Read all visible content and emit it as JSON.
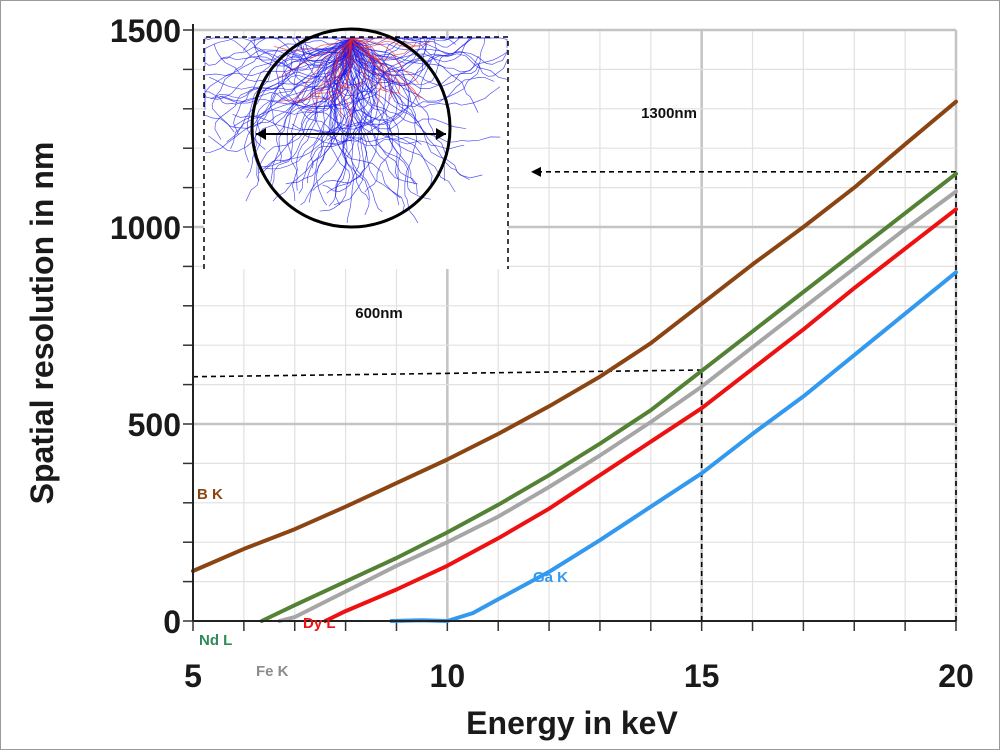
{
  "chart_data": {
    "type": "line",
    "title": "",
    "xlabel": "Energy in keV",
    "ylabel": "Spatial resolution in nm",
    "xlim": [
      5,
      20
    ],
    "ylim": [
      0,
      1500
    ],
    "xticks": [
      "5",
      "10",
      "15",
      "20"
    ],
    "yticks": [
      "0",
      "500",
      "1000",
      "1500"
    ],
    "grid": true,
    "series": [
      {
        "name": "B K",
        "color": "#8B4513",
        "points": [
          [
            5,
            127
          ],
          [
            6,
            183
          ],
          [
            7,
            233
          ],
          [
            8,
            290
          ],
          [
            9,
            350
          ],
          [
            10,
            410
          ],
          [
            11,
            475
          ],
          [
            12,
            545
          ],
          [
            13,
            620
          ],
          [
            14,
            705
          ],
          [
            15,
            805
          ],
          [
            16,
            905
          ],
          [
            17,
            1000
          ],
          [
            18,
            1100
          ],
          [
            19,
            1210
          ],
          [
            20,
            1318
          ]
        ]
      },
      {
        "name": "Nd L",
        "color": "#548235",
        "points": [
          [
            6.35,
            0
          ],
          [
            7,
            40
          ],
          [
            8,
            100
          ],
          [
            9,
            160
          ],
          [
            10,
            225
          ],
          [
            11,
            295
          ],
          [
            12,
            370
          ],
          [
            13,
            450
          ],
          [
            14,
            535
          ],
          [
            15,
            635
          ],
          [
            16,
            735
          ],
          [
            17,
            835
          ],
          [
            18,
            935
          ],
          [
            19,
            1035
          ],
          [
            20,
            1135
          ]
        ]
      },
      {
        "name": "Fe K",
        "color": "#A6A6A6",
        "points": [
          [
            6.7,
            0
          ],
          [
            7,
            10
          ],
          [
            8,
            75
          ],
          [
            9,
            140
          ],
          [
            10,
            200
          ],
          [
            11,
            265
          ],
          [
            12,
            340
          ],
          [
            13,
            420
          ],
          [
            14,
            505
          ],
          [
            15,
            595
          ],
          [
            16,
            695
          ],
          [
            17,
            795
          ],
          [
            18,
            895
          ],
          [
            19,
            995
          ],
          [
            20,
            1090
          ]
        ]
      },
      {
        "name": "Dy L",
        "color": "#EE1111",
        "points": [
          [
            7.6,
            0
          ],
          [
            8,
            25
          ],
          [
            9,
            80
          ],
          [
            10,
            140
          ],
          [
            11,
            210
          ],
          [
            12,
            285
          ],
          [
            13,
            370
          ],
          [
            14,
            455
          ],
          [
            15,
            540
          ],
          [
            16,
            640
          ],
          [
            17,
            740
          ],
          [
            18,
            845
          ],
          [
            19,
            945
          ],
          [
            20,
            1045
          ]
        ]
      },
      {
        "name": "Ga K",
        "color": "#3399EE",
        "points": [
          [
            8.9,
            0
          ],
          [
            9.5,
            2
          ],
          [
            10,
            0
          ],
          [
            10.5,
            20
          ],
          [
            11,
            55
          ],
          [
            12,
            125
          ],
          [
            13,
            205
          ],
          [
            14,
            290
          ],
          [
            15,
            375
          ],
          [
            16,
            475
          ],
          [
            17,
            570
          ],
          [
            18,
            675
          ],
          [
            19,
            780
          ],
          [
            20,
            885
          ]
        ]
      }
    ],
    "reference_lines": [
      {
        "points": [
          [
            15,
            0
          ],
          [
            15,
            637
          ]
        ]
      },
      {
        "points": [
          [
            5,
            620
          ],
          [
            15,
            637
          ]
        ]
      },
      {
        "points": [
          [
            20,
            0
          ],
          [
            20,
            1140
          ]
        ]
      }
    ],
    "annotations": [
      "600nm",
      "1300nm"
    ]
  },
  "inset": {
    "description_icon": "electron-trajectory-simulation",
    "colors": {
      "trajectories": "#1a1aee",
      "backscatter": "#ee2222",
      "circle": "#000000"
    }
  }
}
